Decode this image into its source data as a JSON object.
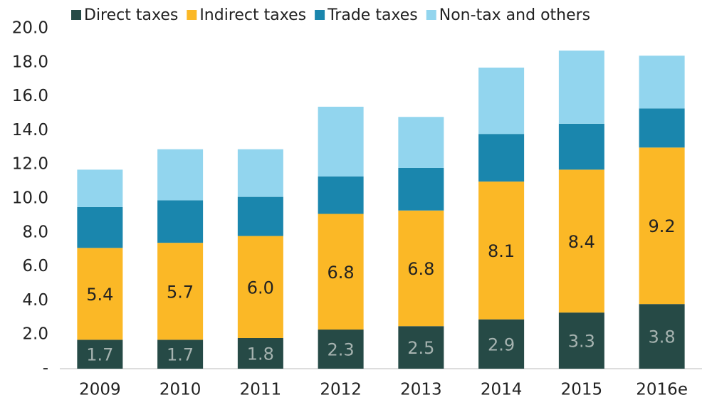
{
  "chart_data": {
    "type": "bar",
    "stacked": true,
    "categories": [
      "2009",
      "2010",
      "2011",
      "2012",
      "2013",
      "2014",
      "2015",
      "2016e"
    ],
    "series": [
      {
        "name": "Direct taxes",
        "color": "#264a46",
        "values": [
          1.7,
          1.7,
          1.8,
          2.3,
          2.5,
          2.9,
          3.3,
          3.8
        ],
        "label_color": "#a6b3b0"
      },
      {
        "name": "Indirect taxes",
        "color": "#fbb826",
        "values": [
          5.4,
          5.7,
          6.0,
          6.8,
          6.8,
          8.1,
          8.4,
          9.2
        ],
        "value_labels": [
          "5.4",
          "5.7",
          "6.0",
          "6.8",
          "6.8",
          "8.1",
          "8.4",
          "9.2"
        ],
        "label_color": "#222222"
      },
      {
        "name": "Trade taxes",
        "color": "#1a86ad",
        "values": [
          2.4,
          2.5,
          2.3,
          2.2,
          2.5,
          2.8,
          2.7,
          2.3
        ]
      },
      {
        "name": "Non-tax and others",
        "color": "#92d5ee",
        "values": [
          2.2,
          3.0,
          2.8,
          4.1,
          3.0,
          3.9,
          4.3,
          3.1
        ]
      }
    ],
    "ylim": [
      0,
      20
    ],
    "yticks": [
      {
        "value": 0,
        "label": "-"
      },
      {
        "value": 2,
        "label": "2.0"
      },
      {
        "value": 4,
        "label": "4.0"
      },
      {
        "value": 6,
        "label": "6.0"
      },
      {
        "value": 8,
        "label": "8.0"
      },
      {
        "value": 10,
        "label": "10.0"
      },
      {
        "value": 12,
        "label": "12.0"
      },
      {
        "value": 14,
        "label": "14.0"
      },
      {
        "value": 16,
        "label": "16.0"
      },
      {
        "value": 18,
        "label": "18.0"
      },
      {
        "value": 20,
        "label": "20.0"
      }
    ],
    "legend": "top"
  }
}
